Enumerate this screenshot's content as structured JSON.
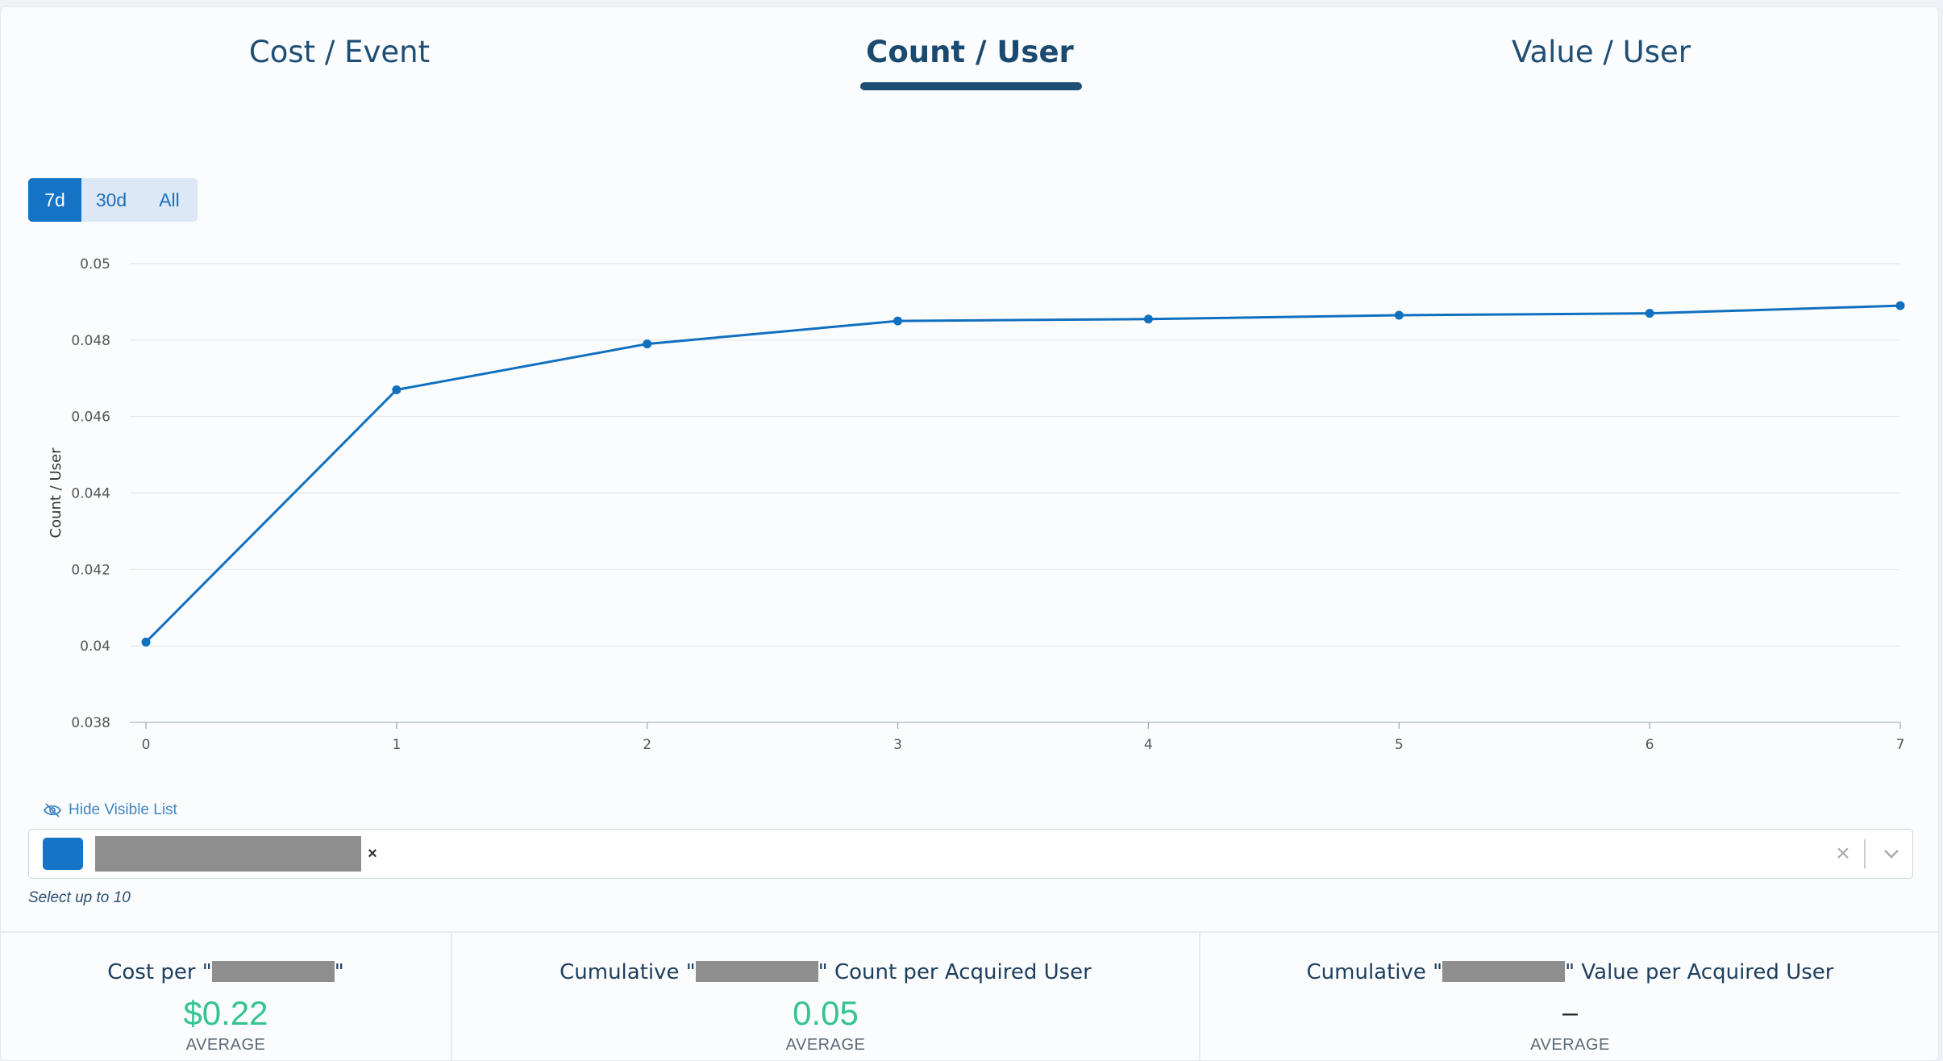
{
  "tabs": [
    {
      "label": "Cost / Event",
      "active": false
    },
    {
      "label": "Count / User",
      "active": true
    },
    {
      "label": "Value / User",
      "active": false
    }
  ],
  "ranges": [
    {
      "label": "7d",
      "active": true
    },
    {
      "label": "30d",
      "active": false
    },
    {
      "label": "All",
      "active": false
    }
  ],
  "chart_data": {
    "type": "line",
    "x": [
      0,
      1,
      2,
      3,
      4,
      5,
      6,
      7
    ],
    "series": [
      {
        "values": [
          0.0401,
          0.0467,
          0.0479,
          0.0485,
          0.04855,
          0.04865,
          0.0487,
          0.0489
        ],
        "color": "#1070c0"
      }
    ],
    "xlabel": "",
    "ylabel": "Count / User",
    "ylim": [
      0.038,
      0.05
    ],
    "yticks": [
      "0.038",
      "0.04",
      "0.042",
      "0.044",
      "0.046",
      "0.048",
      "0.05"
    ],
    "xticks": [
      "0",
      "1",
      "2",
      "3",
      "4",
      "5",
      "6",
      "7"
    ],
    "grid": true
  },
  "hide_list_label": "Hide Visible List",
  "select": {
    "remove_glyph": "×",
    "clear_glyph": "×",
    "hint": "Select up to 10"
  },
  "stats": [
    {
      "title_prefix": "Cost per \"",
      "title_suffix": "\"",
      "value": "$0.22",
      "sub": "AVERAGE"
    },
    {
      "title_prefix": "Cumulative \"",
      "title_suffix": "\" Count per Acquired User",
      "value": "0.05",
      "sub": "AVERAGE"
    },
    {
      "title_prefix": "Cumulative \"",
      "title_suffix": "\" Value per Acquired User",
      "value": "–",
      "sub": "AVERAGE"
    }
  ],
  "colors": {
    "accent": "#1574c6",
    "value_green": "#35c48f",
    "tab_text": "#1f4e74"
  }
}
